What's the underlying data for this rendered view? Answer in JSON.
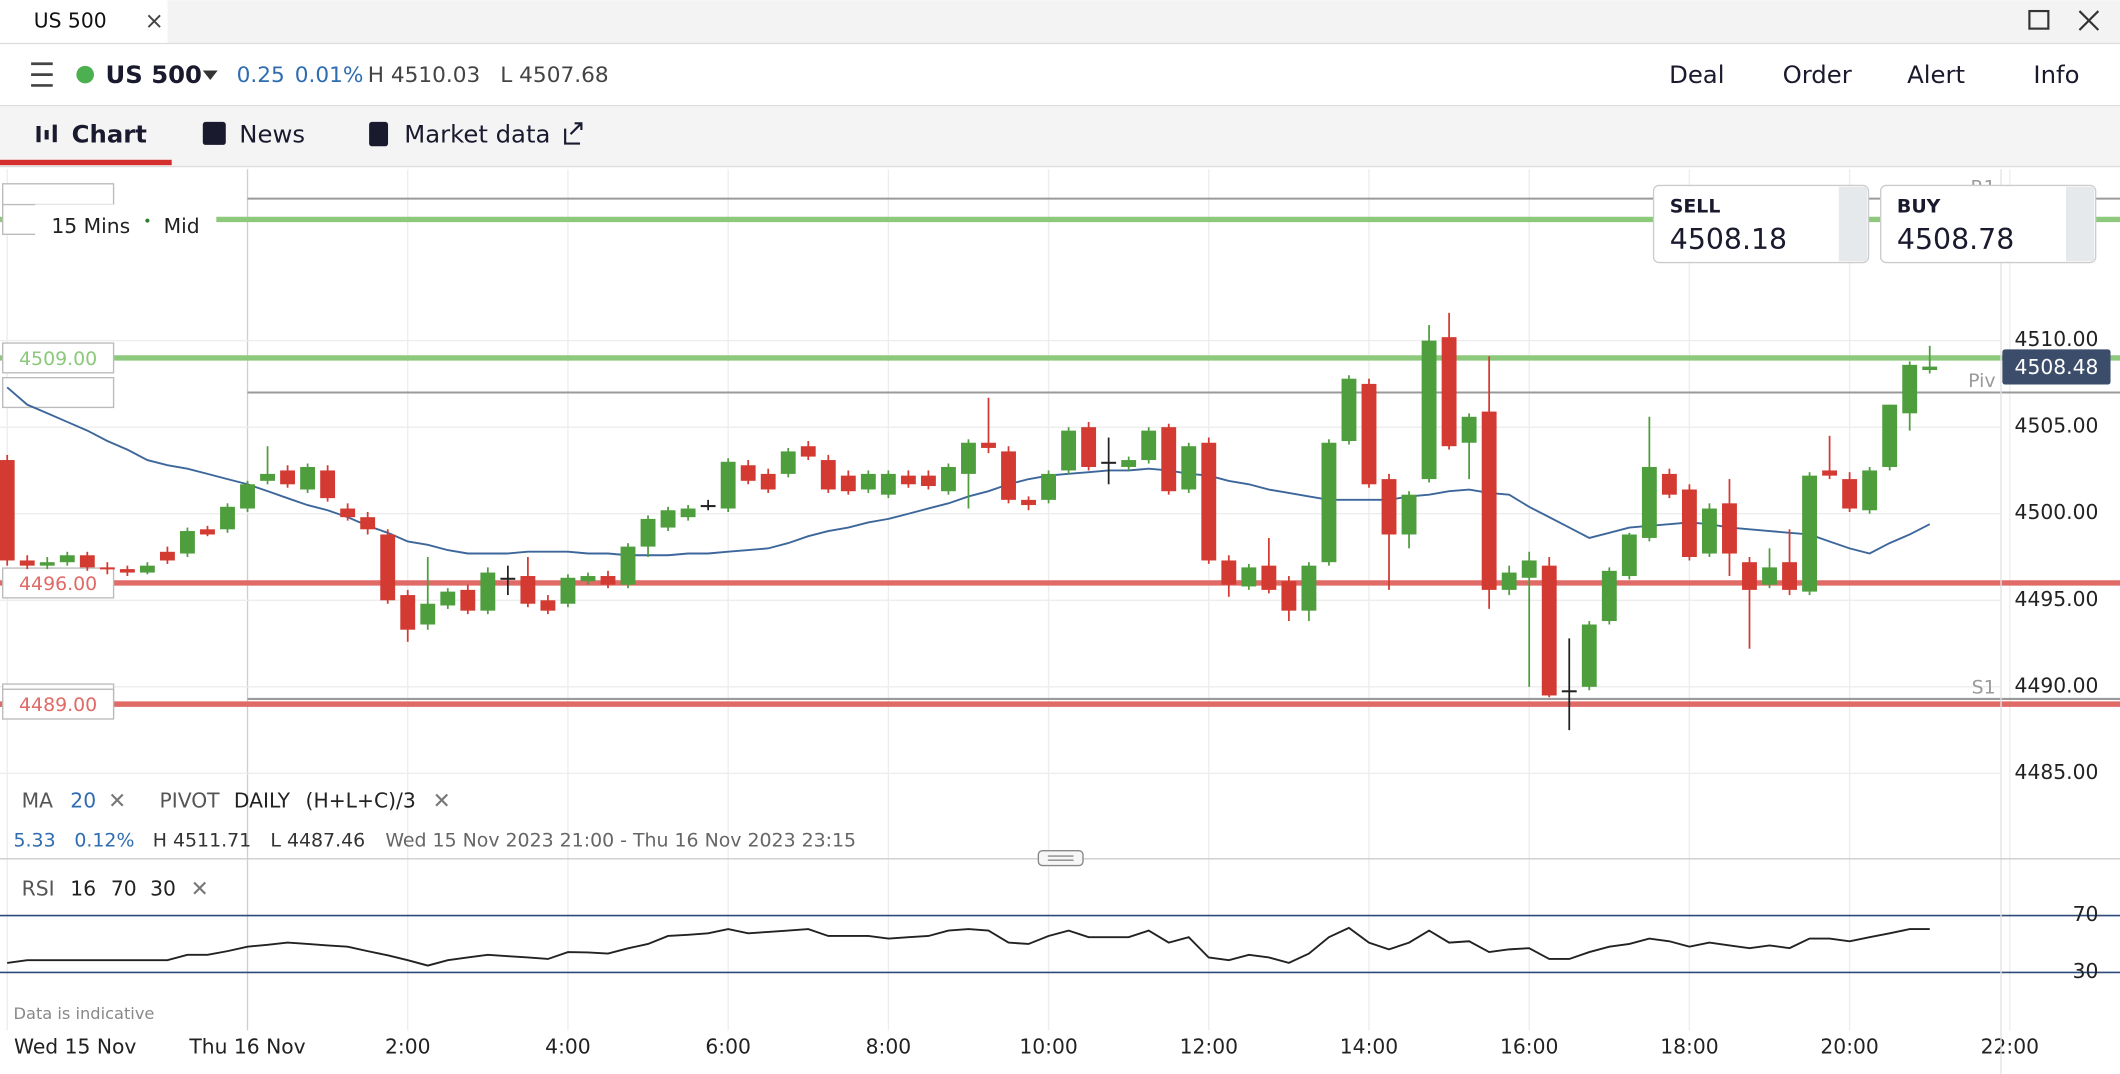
{
  "window": {
    "tab": "US 500"
  },
  "header": {
    "symbol": "US 500",
    "change": "0.25",
    "change_pct": "0.01%",
    "high": "H 4510.03",
    "low": "L 4507.68",
    "actions": [
      "Deal",
      "Order",
      "Alert",
      "Info"
    ]
  },
  "tabs": [
    "Chart",
    "News",
    "Market data"
  ],
  "chart_data": {
    "type": "candlestick",
    "interval": "15 Mins",
    "price_type": "Mid",
    "up_color": "#4f9e3e",
    "down_color": "#d33a32",
    "x": [
      -3,
      -2.75,
      -2.5,
      -2.25,
      -2,
      -1.75,
      -1.5,
      -1.25,
      -1,
      -0.75,
      -0.5,
      -0.25,
      0,
      0.25,
      0.5,
      0.75,
      1,
      1.25,
      1.5,
      1.75,
      2,
      2.25,
      2.5,
      2.75,
      3,
      3.25,
      3.5,
      3.75,
      4,
      4.25,
      4.5,
      4.75,
      5,
      5.25,
      5.5,
      5.75,
      6,
      6.25,
      6.5,
      6.75,
      7,
      7.25,
      7.5,
      7.75,
      8,
      8.25,
      8.5,
      8.75,
      9,
      9.25,
      9.5,
      9.75,
      10,
      10.25,
      10.5,
      10.75,
      11,
      11.25,
      11.5,
      11.75,
      12,
      12.25,
      12.5,
      12.75,
      13,
      13.25,
      13.5,
      13.75,
      14,
      14.25,
      14.5,
      14.75,
      15,
      15.25,
      15.5,
      15.75,
      16,
      16.25,
      16.5,
      16.75,
      17,
      17.25,
      17.5,
      17.75,
      18,
      18.25,
      18.5,
      18.75,
      19,
      19.25,
      19.5,
      19.75,
      20,
      20.25,
      20.5,
      20.75,
      21
    ],
    "open": [
      4503.1,
      4497.3,
      4497.0,
      4497.2,
      4497.6,
      4496.9,
      4496.8,
      4496.6,
      4497.8,
      4497.7,
      4499.1,
      4499.1,
      4500.3,
      4501.9,
      4502.5,
      4501.4,
      4502.5,
      4500.3,
      4499.8,
      4498.8,
      4495.3,
      4493.6,
      4494.7,
      4495.6,
      4494.4,
      4496.3,
      4496.4,
      4495.0,
      4494.8,
      4496.1,
      4496.4,
      4495.9,
      4498.1,
      4499.2,
      4499.8,
      4500.5,
      4500.3,
      4502.8,
      4502.3,
      4502.3,
      4503.9,
      4503.1,
      4502.2,
      4501.4,
      4501.1,
      4502.2,
      4502.2,
      4501.3,
      4502.3,
      4504.1,
      4503.6,
      4500.8,
      4500.8,
      4502.5,
      4505.0,
      4503.0,
      4502.7,
      4503.1,
      4505.0,
      4501.4,
      4504.1,
      4497.3,
      4495.8,
      4497.0,
      4496.1,
      4494.4,
      4497.2,
      4504.2,
      4507.5,
      4502.0,
      4498.8,
      4502.0,
      4510.2,
      4504.1,
      4505.9,
      4495.6,
      4496.3,
      4497.0,
      4489.8,
      4490.0,
      4493.8,
      4496.4,
      4498.6,
      4502.3,
      4501.4,
      4497.7,
      4500.6,
      4497.2,
      4495.9,
      4497.2,
      4495.5,
      4502.5,
      4502.0,
      4500.2,
      4502.7,
      4505.8,
      4508.3
    ],
    "high": [
      4503.4,
      4497.6,
      4497.5,
      4497.8,
      4497.8,
      4497.2,
      4497.0,
      4497.2,
      4498.1,
      4499.2,
      4499.3,
      4500.6,
      4501.9,
      4503.9,
      4502.8,
      4502.9,
      4502.8,
      4500.6,
      4500.1,
      4499.1,
      4495.6,
      4497.5,
      4495.7,
      4495.9,
      4496.9,
      4497.0,
      4497.5,
      4495.3,
      4496.5,
      4496.6,
      4496.7,
      4498.3,
      4499.9,
      4500.4,
      4500.5,
      4500.8,
      4503.2,
      4503.1,
      4502.6,
      4503.8,
      4504.2,
      4503.4,
      4502.5,
      4502.5,
      4502.5,
      4502.5,
      4502.5,
      4502.9,
      4504.3,
      4506.7,
      4503.9,
      4501.0,
      4502.5,
      4505.0,
      4505.3,
      4504.4,
      4503.3,
      4505.0,
      4505.2,
      4504.1,
      4504.4,
      4497.6,
      4497.1,
      4498.6,
      4496.4,
      4497.2,
      4504.3,
      4508.0,
      4507.8,
      4502.3,
      4501.3,
      4510.9,
      4511.6,
      4505.8,
      4509.1,
      4497.0,
      4497.8,
      4497.5,
      4492.8,
      4493.8,
      4496.9,
      4498.9,
      4505.6,
      4502.6,
      4501.7,
      4500.6,
      4502.0,
      4497.5,
      4498.0,
      4499.1,
      4502.4,
      4504.5,
      4502.4,
      4502.7,
      4506.3,
      4508.8,
      4509.7
    ],
    "low": [
      4497.0,
      4496.8,
      4496.8,
      4497.0,
      4496.7,
      4496.5,
      4496.4,
      4496.5,
      4497.1,
      4497.5,
      4498.7,
      4498.9,
      4500.1,
      4501.7,
      4501.5,
      4501.2,
      4500.7,
      4499.6,
      4498.8,
      4494.8,
      4492.6,
      4493.3,
      4494.5,
      4494.2,
      4494.2,
      4495.3,
      4494.6,
      4494.2,
      4494.6,
      4495.9,
      4495.7,
      4495.7,
      4497.5,
      4499.0,
      4499.6,
      4500.2,
      4500.1,
      4501.7,
      4501.2,
      4502.1,
      4503.1,
      4501.2,
      4501.1,
      4501.2,
      4500.9,
      4501.5,
      4501.4,
      4501.1,
      4500.3,
      4503.5,
      4500.6,
      4500.2,
      4500.6,
      4502.3,
      4502.5,
      4501.7,
      4502.5,
      4502.9,
      4501.1,
      4501.2,
      4497.1,
      4495.2,
      4495.6,
      4495.4,
      4493.8,
      4493.8,
      4497.0,
      4504.0,
      4501.5,
      4495.6,
      4498.0,
      4501.8,
      4503.7,
      4502.0,
      4494.5,
      4495.3,
      4490.0,
      4489.4,
      4487.5,
      4489.8,
      4493.6,
      4496.2,
      4498.4,
      4500.9,
      4497.3,
      4497.5,
      4496.4,
      4492.2,
      4495.7,
      4495.3,
      4495.3,
      4502.0,
      4500.1,
      4500.0,
      4502.5,
      4504.8,
      4508.1
    ],
    "close": [
      4497.3,
      4497.0,
      4497.2,
      4497.6,
      4496.9,
      4496.8,
      4496.6,
      4497.0,
      4497.3,
      4499.0,
      4498.8,
      4500.4,
      4501.7,
      4502.3,
      4501.7,
      4502.7,
      4500.9,
      4499.8,
      4499.1,
      4495.0,
      4493.3,
      4494.8,
      4495.5,
      4494.4,
      4496.6,
      4496.3,
      4494.8,
      4494.4,
      4496.3,
      4496.4,
      4495.9,
      4498.1,
      4499.7,
      4500.2,
      4500.3,
      4500.5,
      4503.0,
      4501.9,
      4501.4,
      4503.6,
      4503.3,
      4501.4,
      4501.3,
      4502.3,
      4502.3,
      4501.7,
      4501.6,
      4502.7,
      4504.1,
      4503.8,
      4500.8,
      4500.5,
      4502.3,
      4504.8,
      4502.7,
      4503.0,
      4503.1,
      4504.8,
      4501.3,
      4503.9,
      4497.3,
      4495.9,
      4496.9,
      4495.6,
      4494.4,
      4497.0,
      4504.1,
      4507.8,
      4501.7,
      4498.8,
      4501.1,
      4510.0,
      4503.9,
      4505.6,
      4495.6,
      4496.6,
      4497.3,
      4489.5,
      4489.8,
      4493.6,
      4496.7,
      4498.8,
      4502.7,
      4501.1,
      4497.5,
      4500.3,
      4497.7,
      4495.6,
      4496.9,
      4495.6,
      4502.2,
      4502.2,
      4500.3,
      4502.5,
      4506.3,
      4508.6,
      4508.5
    ],
    "xlim": [
      -3.09,
      21.89
    ],
    "xticks": [
      {
        "value": -3,
        "label": "Wed 15 Nov"
      },
      {
        "value": 0,
        "label": "Thu 16 Nov"
      },
      {
        "value": 2,
        "label": "2:00"
      },
      {
        "value": 4,
        "label": "4:00"
      },
      {
        "value": 6,
        "label": "6:00"
      },
      {
        "value": 8,
        "label": "8:00"
      },
      {
        "value": 10,
        "label": "10:00"
      },
      {
        "value": 12,
        "label": "12:00"
      },
      {
        "value": 14,
        "label": "14:00"
      },
      {
        "value": 16,
        "label": "16:00"
      },
      {
        "value": 18,
        "label": "18:00"
      },
      {
        "value": 20,
        "label": "20:00"
      },
      {
        "value": 22,
        "label": "22:00"
      }
    ],
    "ylim": [
      4480.3,
      4519.9
    ],
    "yticks": [
      {
        "value": 4510,
        "label": "4510.00"
      },
      {
        "value": 4505,
        "label": "4505.00"
      },
      {
        "value": 4500,
        "label": "4500.00"
      },
      {
        "value": 4495,
        "label": "4495.00"
      },
      {
        "value": 4490,
        "label": "4490.00"
      },
      {
        "value": 4485,
        "label": "4485.00"
      }
    ],
    "grid": true,
    "last_price": 4508.48,
    "quotes": {
      "sell_label": "SELL",
      "sell": "4508.18",
      "buy_label": "BUY",
      "buy": "4508.78"
    },
    "levels": [
      {
        "name": "R1",
        "value": 4518.2,
        "color": "#9a9a9a"
      },
      {
        "value": 4517.0,
        "color": "#8cc97c"
      },
      {
        "value": 4509,
        "label": "4509.00",
        "color": "#8cc97c"
      },
      {
        "name": "Piv",
        "value": 4507.0,
        "color": "#9a9a9a"
      },
      {
        "value": 4496,
        "label": "4496.00",
        "color": "#e06a66"
      },
      {
        "name": "S1",
        "value": 4489.3,
        "color": "#9a9a9a"
      },
      {
        "value": 4489,
        "label": "4489.00",
        "color": "#e06a66"
      }
    ],
    "ma": {
      "name": "MA",
      "period": "20",
      "color": "#3d679b",
      "values": [
        4507.3,
        4506.3,
        4505.8,
        4505.3,
        4504.8,
        4504.2,
        4503.7,
        4503.1,
        4502.8,
        4502.6,
        4502.3,
        4502.0,
        4501.7,
        4501.3,
        4500.9,
        4500.5,
        4500.2,
        4499.8,
        4499.3,
        4498.9,
        4498.4,
        4498.2,
        4497.9,
        4497.7,
        4497.7,
        4497.7,
        4497.8,
        4497.8,
        4497.8,
        4497.7,
        4497.7,
        4497.6,
        4497.6,
        4497.6,
        4497.7,
        4497.7,
        4497.8,
        4497.9,
        4498.0,
        4498.3,
        4498.7,
        4499.0,
        4499.2,
        4499.5,
        4499.7,
        4500.0,
        4500.3,
        4500.6,
        4501.0,
        4501.3,
        4501.7,
        4502.0,
        4502.2,
        4502.3,
        4502.4,
        4502.5,
        4502.5,
        4502.6,
        4502.5,
        4502.3,
        4502.2,
        4501.9,
        4501.7,
        4501.4,
        4501.2,
        4501.0,
        4500.8,
        4500.8,
        4500.8,
        4500.8,
        4501.0,
        4501.1,
        4501.3,
        4501.4,
        4501.2,
        4501.1,
        4500.4,
        4499.8,
        4499.2,
        4498.6,
        4498.9,
        4499.2,
        4499.3,
        4499.4,
        4499.5,
        4499.4,
        4499.2,
        4499.1,
        4499.0,
        4498.9,
        4498.8,
        4498.4,
        4498.0,
        4497.7,
        4498.3,
        4498.8,
        4499.4
      ]
    },
    "pivot": {
      "name": "PIVOT",
      "period": "DAILY",
      "formula": "(H+L+C)/3"
    },
    "summary": {
      "change": "5.33",
      "change_pct": "0.12%",
      "high": "H 4511.71",
      "low": "L 4487.46",
      "range": "Wed 15 Nov 2023 21:00 - Thu 16 Nov 2023 23:15"
    },
    "rsi": {
      "name": "RSI",
      "period": "16",
      "color": "#222222",
      "band_color": "#2c4a7a",
      "ylim": [
        -9,
        100.5
      ],
      "yticks": [
        70,
        30
      ],
      "values": [
        36.7,
        38.6,
        38.6,
        38.6,
        38.6,
        38.6,
        38.6,
        38.6,
        38.6,
        42.4,
        42.4,
        45,
        48.1,
        49.5,
        51.0,
        50,
        49,
        48.1,
        45,
        42,
        38.6,
        34.8,
        38.6,
        40.5,
        42.4,
        41.5,
        40.5,
        39.5,
        44.3,
        44,
        43.3,
        47,
        50.0,
        55.7,
        56.5,
        57.6,
        60.5,
        57.6,
        58.5,
        59.5,
        60.5,
        55.7,
        55.7,
        55.7,
        53.8,
        54.8,
        55.7,
        59.5,
        60.5,
        59.5,
        51.0,
        50.0,
        55.7,
        59.5,
        54.8,
        54.8,
        54.8,
        59.5,
        51.0,
        54.8,
        40.5,
        38.6,
        42.4,
        40.5,
        36.7,
        43.3,
        54.8,
        61.4,
        51.0,
        46.2,
        51.0,
        59.5,
        51.0,
        51.9,
        44.3,
        46.2,
        47.1,
        39.5,
        39.5,
        44.3,
        48.1,
        50.0,
        53.8,
        51.9,
        48.1,
        51.0,
        49.0,
        47.1,
        49.0,
        47.1,
        53.8,
        53.8,
        51.9,
        54.8,
        57.6,
        60.5,
        60.5
      ]
    },
    "note": "Data is indicative"
  }
}
